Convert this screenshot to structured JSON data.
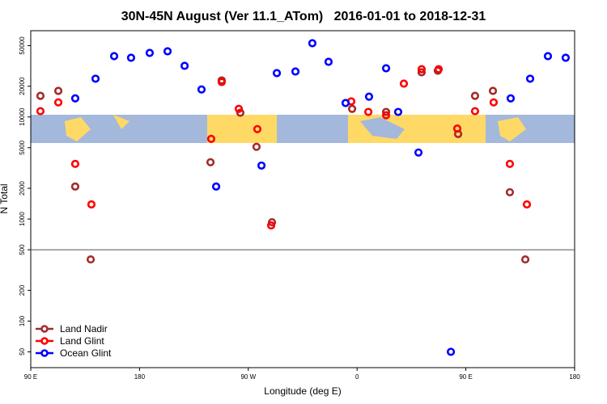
{
  "chart_data": {
    "type": "scatter",
    "title": "30N-45N August (Ver 11.1_ATom)   2016-01-01 to 2018-12-31",
    "xlabel": "Longitude (deg E)",
    "ylabel": "N Total",
    "xlim": [
      90,
      540
    ],
    "xticks": [
      {
        "value": 90,
        "label": "90 E"
      },
      {
        "value": 180,
        "label": "180"
      },
      {
        "value": 270,
        "label": "90 W"
      },
      {
        "value": 360,
        "label": "0"
      },
      {
        "value": 450,
        "label": "90 E"
      },
      {
        "value": 540,
        "label": "180"
      }
    ],
    "ylim": [
      35,
      70000
    ],
    "log_y": true,
    "yticks": [
      50,
      100,
      200,
      500,
      1000,
      2000,
      5000,
      10000,
      20000,
      50000
    ],
    "hline": 500,
    "legend": "bottom-left",
    "series": [
      {
        "name": "Land Nadir",
        "color": "#a52a2a",
        "x": [
          98.0,
          112.8,
          126.8,
          139.6,
          238.7,
          248.0,
          263.4,
          276.8,
          289.6,
          355.9,
          384.0,
          413.4,
          426.8,
          443.6,
          457.6,
          472.4,
          486.4,
          499.2
        ],
        "values": [
          16100,
          18000,
          2080,
          402,
          3600,
          22800,
          11000,
          5100,
          930,
          12000,
          11200,
          27400,
          28400,
          6800,
          16100,
          18000,
          1830,
          402
        ]
      },
      {
        "name": "Land Glint",
        "color": "#ff0000",
        "x": [
          98.0,
          112.8,
          126.8,
          140.2,
          239.3,
          248.0,
          262.1,
          277.5,
          288.9,
          355.2,
          369.3,
          384.0,
          398.7,
          413.4,
          427.5,
          442.9,
          457.6,
          473.0,
          486.4,
          500.5
        ],
        "values": [
          11400,
          13900,
          3470,
          1390,
          6100,
          22000,
          12000,
          7600,
          865,
          14200,
          11200,
          10400,
          21200,
          29400,
          29400,
          7700,
          11400,
          13900,
          3470,
          1390
        ]
      },
      {
        "name": "Ocean Glint",
        "color": "#0000ff",
        "x": [
          126.8,
          143.6,
          159.0,
          173.0,
          188.4,
          203.2,
          217.3,
          231.3,
          243.4,
          280.9,
          293.6,
          309.0,
          323.0,
          336.4,
          350.5,
          369.9,
          384.0,
          394.0,
          410.8,
          437.6,
          487.1,
          503.2,
          517.9,
          532.6
        ],
        "values": [
          15200,
          23700,
          39400,
          38000,
          42400,
          44000,
          31700,
          18600,
          2080,
          3340,
          26900,
          27900,
          52800,
          34700,
          13700,
          15800,
          30000,
          11200,
          4480,
          50,
          15200,
          23700,
          39400,
          38000
        ]
      }
    ]
  }
}
